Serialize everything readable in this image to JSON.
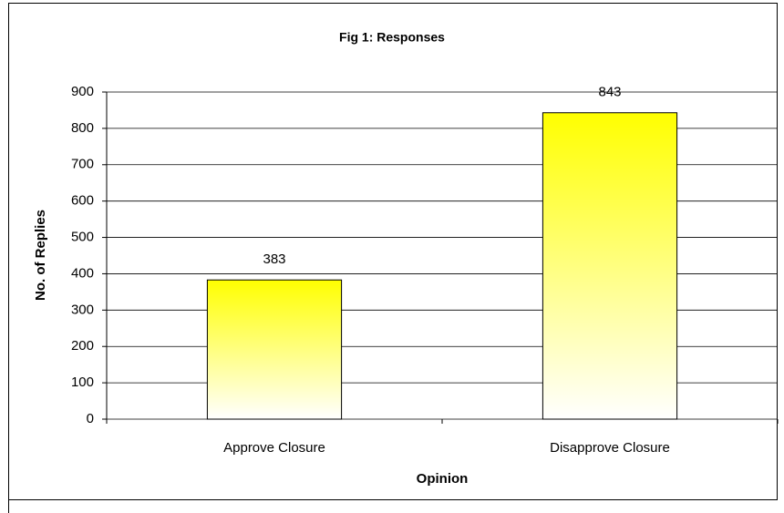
{
  "chart_data": {
    "type": "bar",
    "title": "Fig 1: Responses",
    "x_label": "Opinion",
    "y_label": "No. of Replies",
    "categories": [
      "Approve Closure",
      "Disapprove Closure"
    ],
    "values": [
      383,
      843
    ],
    "color": "#ffff00",
    "ylim": [
      0,
      900
    ],
    "yticks": [
      0,
      100,
      200,
      300,
      400,
      500,
      600,
      700,
      800,
      900
    ],
    "grid": true
  }
}
